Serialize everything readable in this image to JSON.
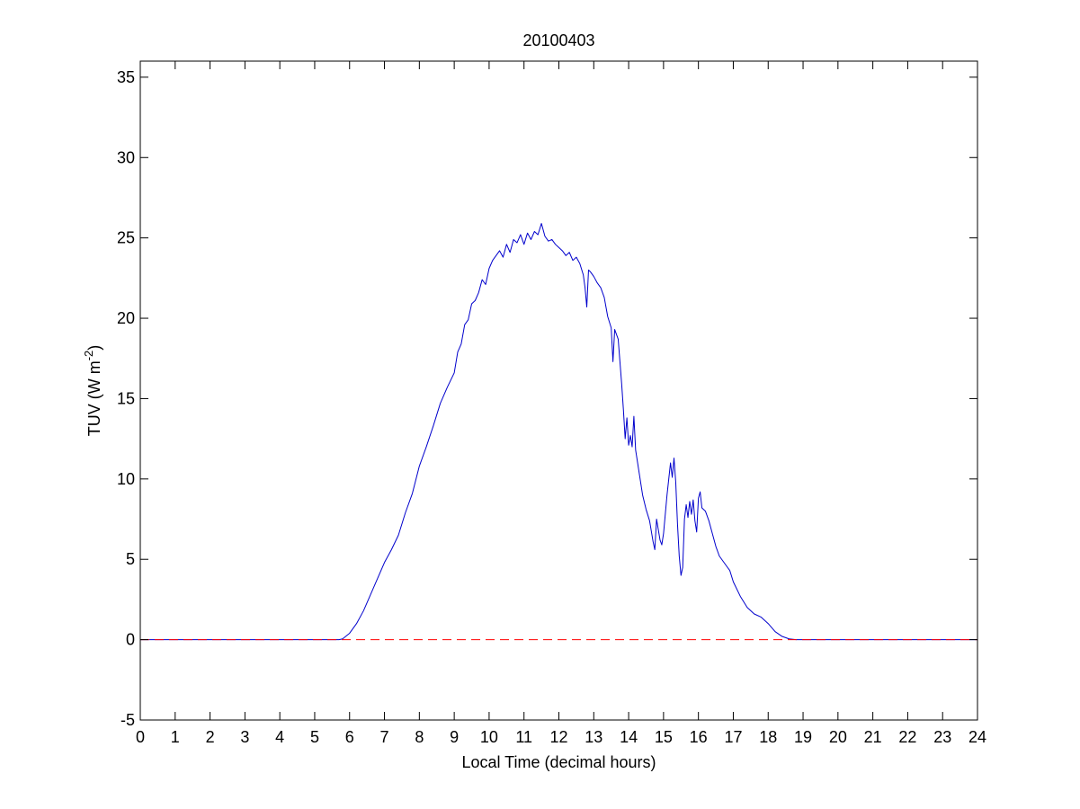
{
  "chart_data": {
    "type": "line",
    "title": "20100403",
    "xlabel": "Local Time (decimal hours)",
    "ylabel": "TUV (W m",
    "ylabel_sup": "-2",
    "ylabel_end": ")",
    "xlim": [
      0,
      24
    ],
    "ylim": [
      -5,
      36
    ],
    "xticks": [
      0,
      1,
      2,
      3,
      4,
      5,
      6,
      7,
      8,
      9,
      10,
      11,
      12,
      13,
      14,
      15,
      16,
      17,
      18,
      19,
      20,
      21,
      22,
      23,
      24
    ],
    "yticks": [
      -5,
      0,
      5,
      10,
      15,
      20,
      25,
      30,
      35
    ],
    "grid": false,
    "legend": "none",
    "series": [
      {
        "style": "solid",
        "color": "#0000cc",
        "points": [
          [
            0,
            0
          ],
          [
            5.0,
            0
          ],
          [
            5.7,
            0
          ],
          [
            5.8,
            0.05
          ],
          [
            6.0,
            0.4
          ],
          [
            6.2,
            1.0
          ],
          [
            6.4,
            1.8
          ],
          [
            6.6,
            2.8
          ],
          [
            6.8,
            3.8
          ],
          [
            7.0,
            4.8
          ],
          [
            7.2,
            5.6
          ],
          [
            7.4,
            6.5
          ],
          [
            7.6,
            7.9
          ],
          [
            7.8,
            9.1
          ],
          [
            8.0,
            10.8
          ],
          [
            8.2,
            12.0
          ],
          [
            8.4,
            13.3
          ],
          [
            8.6,
            14.7
          ],
          [
            8.8,
            15.7
          ],
          [
            9.0,
            16.6
          ],
          [
            9.1,
            17.9
          ],
          [
            9.2,
            18.4
          ],
          [
            9.3,
            19.6
          ],
          [
            9.4,
            19.9
          ],
          [
            9.5,
            20.9
          ],
          [
            9.6,
            21.1
          ],
          [
            9.7,
            21.6
          ],
          [
            9.8,
            22.4
          ],
          [
            9.9,
            22.1
          ],
          [
            10.0,
            23.1
          ],
          [
            10.1,
            23.6
          ],
          [
            10.2,
            23.9
          ],
          [
            10.3,
            24.2
          ],
          [
            10.4,
            23.8
          ],
          [
            10.5,
            24.6
          ],
          [
            10.6,
            24.1
          ],
          [
            10.7,
            24.9
          ],
          [
            10.8,
            24.7
          ],
          [
            10.9,
            25.2
          ],
          [
            11.0,
            24.6
          ],
          [
            11.1,
            25.3
          ],
          [
            11.2,
            24.9
          ],
          [
            11.3,
            25.4
          ],
          [
            11.4,
            25.2
          ],
          [
            11.5,
            25.9
          ],
          [
            11.6,
            25.1
          ],
          [
            11.7,
            24.8
          ],
          [
            11.8,
            24.9
          ],
          [
            11.9,
            24.6
          ],
          [
            12.0,
            24.4
          ],
          [
            12.1,
            24.2
          ],
          [
            12.2,
            23.9
          ],
          [
            12.3,
            24.1
          ],
          [
            12.4,
            23.6
          ],
          [
            12.5,
            23.8
          ],
          [
            12.6,
            23.4
          ],
          [
            12.7,
            22.7
          ],
          [
            12.75,
            21.9
          ],
          [
            12.8,
            20.7
          ],
          [
            12.85,
            23.0
          ],
          [
            12.9,
            22.9
          ],
          [
            13.0,
            22.6
          ],
          [
            13.1,
            22.2
          ],
          [
            13.2,
            21.9
          ],
          [
            13.3,
            21.3
          ],
          [
            13.4,
            20.1
          ],
          [
            13.5,
            19.4
          ],
          [
            13.55,
            17.3
          ],
          [
            13.6,
            19.3
          ],
          [
            13.7,
            18.7
          ],
          [
            13.8,
            15.9
          ],
          [
            13.85,
            14.3
          ],
          [
            13.9,
            12.5
          ],
          [
            13.95,
            13.8
          ],
          [
            14.0,
            12.1
          ],
          [
            14.05,
            12.7
          ],
          [
            14.1,
            12.0
          ],
          [
            14.15,
            13.9
          ],
          [
            14.2,
            11.8
          ],
          [
            14.3,
            10.4
          ],
          [
            14.4,
            9.0
          ],
          [
            14.5,
            8.1
          ],
          [
            14.6,
            7.4
          ],
          [
            14.7,
            6.1
          ],
          [
            14.75,
            5.6
          ],
          [
            14.8,
            7.5
          ],
          [
            14.9,
            6.2
          ],
          [
            14.95,
            5.9
          ],
          [
            15.0,
            6.6
          ],
          [
            15.1,
            9.0
          ],
          [
            15.2,
            11.0
          ],
          [
            15.25,
            10.1
          ],
          [
            15.3,
            11.3
          ],
          [
            15.35,
            9.8
          ],
          [
            15.4,
            7.2
          ],
          [
            15.45,
            5.2
          ],
          [
            15.5,
            4.0
          ],
          [
            15.55,
            4.5
          ],
          [
            15.6,
            7.5
          ],
          [
            15.65,
            8.4
          ],
          [
            15.7,
            7.6
          ],
          [
            15.75,
            8.6
          ],
          [
            15.8,
            7.8
          ],
          [
            15.85,
            8.7
          ],
          [
            15.9,
            7.4
          ],
          [
            15.95,
            6.7
          ],
          [
            16.0,
            8.8
          ],
          [
            16.05,
            9.2
          ],
          [
            16.1,
            8.2
          ],
          [
            16.2,
            8.0
          ],
          [
            16.3,
            7.4
          ],
          [
            16.4,
            6.6
          ],
          [
            16.5,
            5.8
          ],
          [
            16.6,
            5.2
          ],
          [
            16.7,
            4.9
          ],
          [
            16.8,
            4.6
          ],
          [
            16.9,
            4.3
          ],
          [
            17.0,
            3.6
          ],
          [
            17.2,
            2.7
          ],
          [
            17.4,
            2.0
          ],
          [
            17.6,
            1.6
          ],
          [
            17.8,
            1.4
          ],
          [
            18.0,
            1.0
          ],
          [
            18.2,
            0.5
          ],
          [
            18.4,
            0.2
          ],
          [
            18.6,
            0.05
          ],
          [
            18.8,
            0
          ],
          [
            19.0,
            0
          ],
          [
            24,
            0
          ]
        ]
      },
      {
        "style": "dashed",
        "color": "#ff0000",
        "points": [
          [
            0,
            0
          ],
          [
            24,
            0
          ]
        ]
      }
    ]
  }
}
